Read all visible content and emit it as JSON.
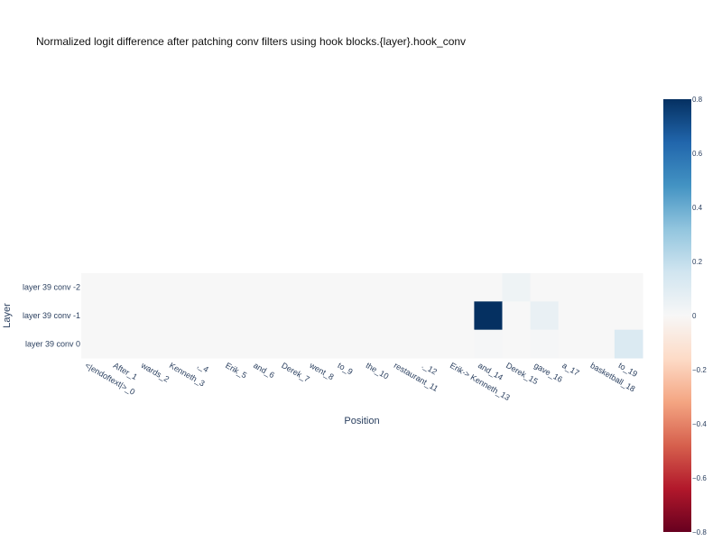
{
  "chart_data": {
    "type": "heatmap",
    "title": "Normalized logit difference after patching conv filters using hook blocks.{layer}.hook_conv",
    "xlabel": "Position",
    "ylabel": "Layer",
    "x": [
      "<|endoftext|>_0",
      "After_1",
      "wards_2",
      "Kenneth_3",
      ",_4",
      "Erik_5",
      "and_6",
      "Derek_7",
      "went_8",
      "to_9",
      "the_10",
      "restaurant_11",
      "._12",
      "Erik-> Kenneth_13",
      "and_14",
      "Derek_15",
      "gave_16",
      "a_17",
      "basketball_18",
      "to_19"
    ],
    "y": [
      "layer 39 conv -2",
      "layer 39 conv -1",
      "layer 39 conv 0"
    ],
    "z": [
      [
        0,
        0,
        0,
        0,
        0,
        0,
        0,
        0,
        0,
        0,
        0,
        0,
        0,
        0,
        0,
        0.04,
        0,
        0,
        0,
        0
      ],
      [
        0,
        0,
        0,
        0,
        0,
        0,
        0,
        0,
        0,
        0,
        0,
        0,
        0,
        0,
        0.82,
        0,
        0.06,
        0,
        0,
        0
      ],
      [
        0,
        0,
        0,
        0,
        0,
        0,
        0,
        0,
        0,
        0,
        0,
        0,
        0,
        0,
        0.01,
        0,
        0.01,
        0,
        0,
        0.12
      ]
    ],
    "colorscale": "RdBu",
    "zmin": -0.8,
    "zmax": 0.8,
    "colorbar_ticks": [
      "0.8",
      "0.6",
      "0.4",
      "0.2",
      "0",
      "−0.2",
      "−0.4",
      "−0.6",
      "−0.8"
    ]
  }
}
